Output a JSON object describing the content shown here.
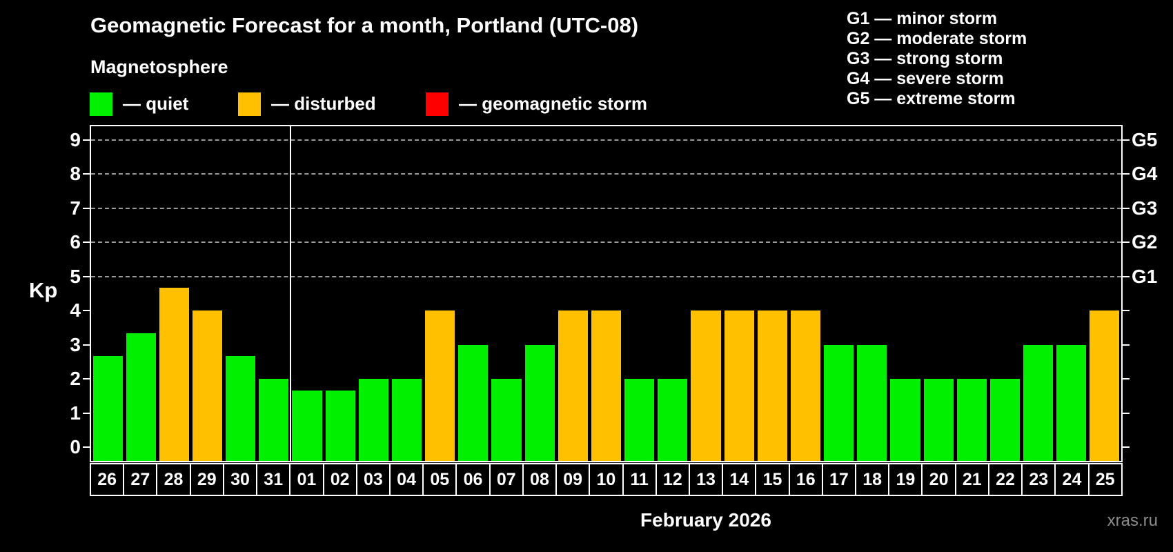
{
  "header": {
    "title": "Geomagnetic Forecast for a month, Portland (UTC-08)",
    "subtitle": "Magnetosphere"
  },
  "legend": {
    "items": [
      {
        "name": "quiet",
        "label": "— quiet",
        "color": "#00f000"
      },
      {
        "name": "disturbed",
        "label": "— disturbed",
        "color": "#ffc000"
      },
      {
        "name": "storm",
        "label": "— geomagnetic storm",
        "color": "#ff0000"
      }
    ]
  },
  "storm_scale": {
    "lines": [
      "G1 — minor storm",
      "G2 — moderate storm",
      "G3 — strong storm",
      "G4 — severe storm",
      "G5 — extreme storm"
    ]
  },
  "footer": {
    "month_label": "February 2026",
    "watermark": "xras.ru"
  },
  "colors": {
    "background": "#000000",
    "axis": "#ffffff",
    "gridline": "#9a9a9a",
    "watermark_text": "#8d8d8d"
  },
  "chart_data": {
    "type": "bar",
    "title": "Geomagnetic Forecast for a month, Portland (UTC-08)",
    "ylabel": "Kp",
    "x_axis_title": "February 2026",
    "categories": [
      "26",
      "27",
      "28",
      "29",
      "30",
      "31",
      "01",
      "02",
      "03",
      "04",
      "05",
      "06",
      "07",
      "08",
      "09",
      "10",
      "11",
      "12",
      "13",
      "14",
      "15",
      "16",
      "17",
      "18",
      "19",
      "20",
      "21",
      "22",
      "23",
      "24",
      "25"
    ],
    "values": [
      2.67,
      3.33,
      4.67,
      4.0,
      2.67,
      2.0,
      1.67,
      1.67,
      2.0,
      2.0,
      4.0,
      3.0,
      2.0,
      3.0,
      4.0,
      4.0,
      2.0,
      2.0,
      4.0,
      4.0,
      4.0,
      4.0,
      3.0,
      3.0,
      2.0,
      2.0,
      2.0,
      2.0,
      3.0,
      3.0,
      4.0
    ],
    "statuses": [
      "quiet",
      "quiet",
      "disturbed",
      "disturbed",
      "quiet",
      "quiet",
      "quiet",
      "quiet",
      "quiet",
      "quiet",
      "disturbed",
      "quiet",
      "quiet",
      "quiet",
      "disturbed",
      "disturbed",
      "quiet",
      "quiet",
      "disturbed",
      "disturbed",
      "disturbed",
      "disturbed",
      "quiet",
      "quiet",
      "quiet",
      "quiet",
      "quiet",
      "quiet",
      "quiet",
      "quiet",
      "disturbed"
    ],
    "status_colors": {
      "quiet": "#00f000",
      "disturbed": "#ffc000",
      "storm": "#ff0000"
    },
    "ylim": [
      -0.4,
      9.4
    ],
    "y_ticks": [
      0,
      1,
      2,
      3,
      4,
      5,
      6,
      7,
      8,
      9
    ],
    "gridlines_at": [
      5,
      6,
      7,
      8,
      9
    ],
    "right_axis_labels": [
      {
        "kp": 5,
        "label": "G1"
      },
      {
        "kp": 6,
        "label": "G2"
      },
      {
        "kp": 7,
        "label": "G3"
      },
      {
        "kp": 8,
        "label": "G4"
      },
      {
        "kp": 9,
        "label": "G5"
      }
    ],
    "month_separator_after": "31",
    "grid": "horizontal dashed lines at storm thresholds only",
    "legend_position": "top-left"
  }
}
